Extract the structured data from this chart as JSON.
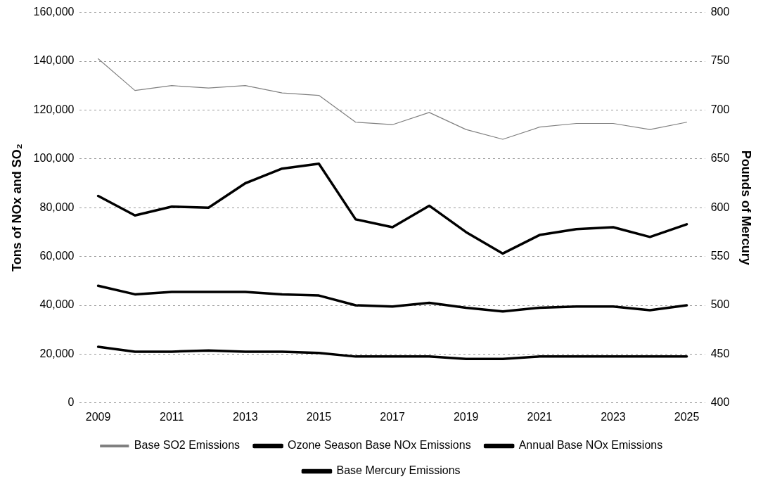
{
  "chart_data": {
    "type": "line",
    "ylabel": "Tons of NOx and SO₂",
    "y2label": "Pounds of Mercury",
    "categories": [
      "2009",
      null,
      "2011",
      null,
      "2013",
      null,
      "2015",
      null,
      "2017",
      null,
      "2019",
      null,
      "2021",
      null,
      "2023",
      null,
      "2025"
    ],
    "series": [
      {
        "name": "Base SO2 Emissions",
        "color": "#808080",
        "values": [
          141000,
          128000,
          130000,
          129000,
          130000,
          127000,
          126000,
          115000,
          114000,
          119000,
          112000,
          108000,
          113000,
          114500,
          114500,
          112000,
          115000
        ]
      },
      {
        "name": "Ozone Season Base NOx Emissions",
        "color": "#000000",
        "values": [
          23000,
          21000,
          21000,
          21500,
          21000,
          21000,
          20500,
          19000,
          19000,
          19000,
          18000,
          18000,
          19000,
          19000,
          19000,
          19000,
          19000
        ]
      },
      {
        "name": "Annual Base NOx Emissions",
        "color": "#000000",
        "values": [
          48000,
          44500,
          45500,
          45500,
          45500,
          44500,
          44000,
          40000,
          39500,
          41000,
          39000,
          37500,
          39000,
          39500,
          39500,
          38000,
          40000
        ]
      },
      {
        "name": "Base Mercury Emissions",
        "color": "#000000",
        "axis": "y2",
        "values": [
          612,
          592,
          601,
          600,
          625,
          640,
          645,
          588,
          580,
          602,
          575,
          553,
          572,
          578,
          580,
          570,
          583
        ]
      }
    ],
    "ylim": [
      0,
      160000
    ],
    "yticks": [
      0,
      {
        "value": 20000,
        "label": "20,000"
      },
      {
        "value": 40000,
        "label": "40,000"
      },
      {
        "value": 60000,
        "label": "60,000"
      },
      {
        "value": 80000,
        "label": "80,000"
      },
      {
        "value": 100000,
        "label": "100,000"
      },
      {
        "value": 120000,
        "label": "120,000"
      },
      {
        "value": 140000,
        "label": "140,000"
      },
      {
        "value": 160000,
        "label": "160,000"
      }
    ],
    "y2lim": [
      400,
      800
    ],
    "y2ticks": [
      400,
      450,
      500,
      550,
      600,
      650,
      700,
      750,
      800
    ],
    "grid": "y",
    "legend": "bottom",
    "marker": "none",
    "line_style": "solid"
  }
}
